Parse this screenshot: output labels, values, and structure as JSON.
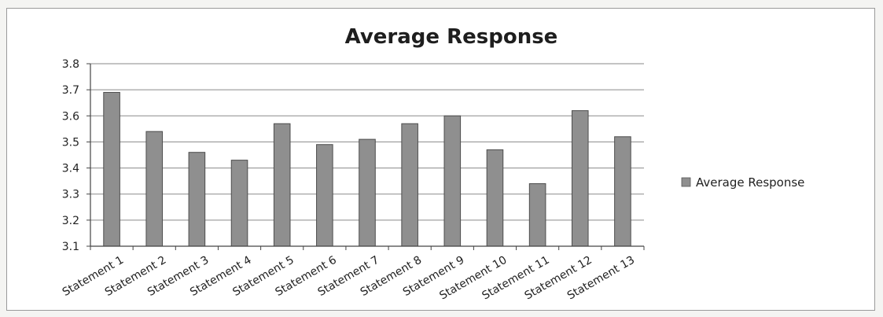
{
  "chart_data": {
    "type": "bar",
    "title": "Average Response",
    "xlabel": "",
    "ylabel": "",
    "categories": [
      "Statement 1",
      "Statement 2",
      "Statement 3",
      "Statement 4",
      "Statement 5",
      "Statement 6",
      "Statement 7",
      "Statement 8",
      "Statement 9",
      "Statement 10",
      "Statement 11",
      "Statement 12",
      "Statement 13"
    ],
    "series": [
      {
        "name": "Average Response",
        "values": [
          3.69,
          3.54,
          3.46,
          3.43,
          3.57,
          3.49,
          3.51,
          3.57,
          3.6,
          3.47,
          3.34,
          3.62,
          3.52
        ],
        "color": "#8f8f8f"
      }
    ],
    "ylim": [
      3.1,
      3.8
    ],
    "yticks": [
      "3.1",
      "3.2",
      "3.3",
      "3.4",
      "3.5",
      "3.6",
      "3.7",
      "3.8"
    ],
    "grid": true,
    "legend_position": "right"
  }
}
